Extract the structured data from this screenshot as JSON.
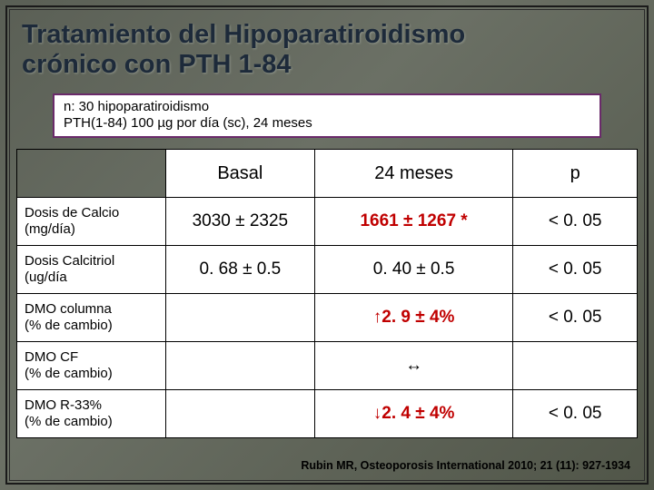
{
  "title_line1": "Tratamiento del Hipoparatiroidismo",
  "title_line2": "crónico con PTH 1-84",
  "study_line1": "n: 30 hipoparatiroidismo",
  "study_line2": "PTH(1-84) 100 µg  por día (sc), 24 meses",
  "headers": {
    "basal": "Basal",
    "meses": "24 meses",
    "p": "p"
  },
  "rows": {
    "r1": {
      "label": "Dosis de Calcio (mg/día)",
      "basal": "3030 ± 2325",
      "meses": "1661 ± 1267 *",
      "p": "< 0. 05",
      "meses_hl": true
    },
    "r2": {
      "label": "Dosis Calcitriol (ug/día",
      "basal": "0. 68 ± 0.5",
      "meses": "0. 40 ± 0.5",
      "p": "< 0. 05",
      "meses_hl": false
    },
    "r3": {
      "label": "DMO columna\n (% de cambio)",
      "basal": "",
      "meses": "↑2. 9 ± 4%",
      "p": "< 0. 05",
      "meses_hl": true
    },
    "r4": {
      "label": "DMO CF\n (% de cambio)",
      "basal": "",
      "meses": "↔",
      "p": "",
      "meses_hl": false
    },
    "r5": {
      "label": "DMO R-33%\n (% de cambio)",
      "basal": "",
      "meses": "↓2. 4 ± 4%",
      "p": "< 0. 05",
      "meses_hl": true
    }
  },
  "citation": "Rubin MR, Osteoporosis International 2010; 21 (11): 927-1934",
  "colors": {
    "title": "#1d2a3a",
    "highlight": "#c00000",
    "box_border": "#6a2a6a",
    "bg_start": "#5a5f55",
    "bg_end": "#505548"
  }
}
